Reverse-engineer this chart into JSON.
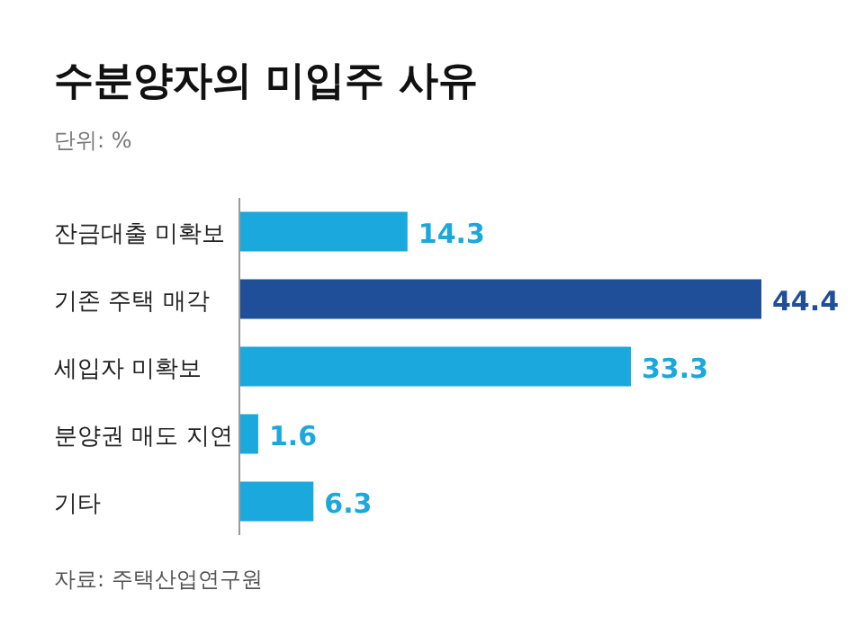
{
  "chart_data": {
    "type": "bar",
    "orientation": "horizontal",
    "title": "수분양자의 미입주 사유",
    "subtitle": "단위: %",
    "categories": [
      "잔금대출 미확보",
      "기존 주택 매각",
      "세입자 미확보",
      "분양권 매도 지연",
      "기타"
    ],
    "values": [
      14.3,
      44.4,
      33.3,
      1.6,
      6.3
    ],
    "colors": [
      "#1ba8dc",
      "#1f4f98",
      "#1ba8dc",
      "#1ba8dc",
      "#1ba8dc"
    ],
    "data_labels": true,
    "annotations": [
      "자료: 주택산업연구원"
    ]
  }
}
